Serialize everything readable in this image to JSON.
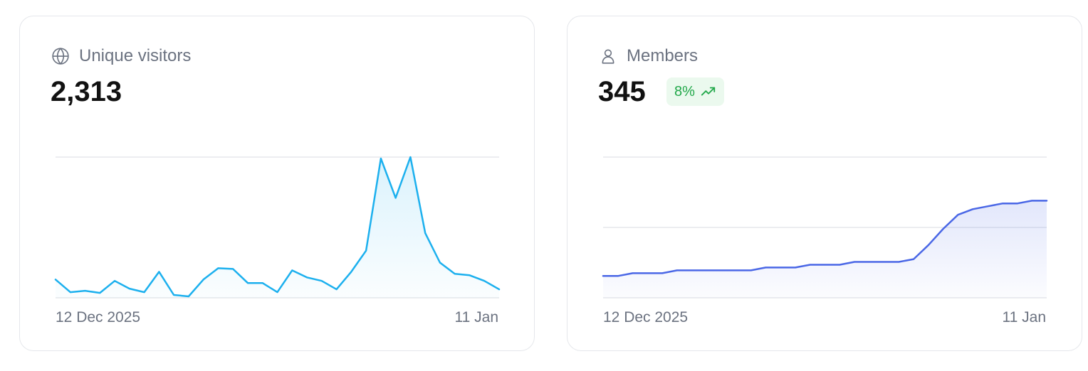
{
  "cards": [
    {
      "label": "Unique visitors",
      "icon": "globe-icon",
      "value": "2,313",
      "x_start": "12 Dec 2025",
      "x_end": "11 Jan",
      "color": "#1cb0ee"
    },
    {
      "label": "Members",
      "icon": "user-icon",
      "value": "345",
      "badge": "8%",
      "badge_icon": "trending-up-icon",
      "x_start": "12 Dec 2025",
      "x_end": "11 Jan",
      "color": "#4a67e6"
    }
  ],
  "chart_data": [
    {
      "type": "area",
      "series": [
        {
          "values": [
            26,
            8,
            10,
            7,
            24,
            13,
            8,
            37,
            4,
            2,
            26,
            42,
            41,
            21,
            21,
            8,
            39,
            29,
            24,
            12,
            37,
            67,
            198,
            142,
            200,
            92,
            50,
            34,
            32,
            24,
            12
          ]
        }
      ],
      "x_start": "12 Dec 2025",
      "x_end": "11 Jan",
      "ylim": [
        0,
        200
      ],
      "grid": true
    },
    {
      "type": "area",
      "series": [
        {
          "values": [
            31,
            31,
            35,
            35,
            35,
            39,
            39,
            39,
            39,
            39,
            39,
            43,
            43,
            43,
            47,
            47,
            47,
            51,
            51,
            51,
            51,
            55,
            75,
            98,
            118,
            126,
            130,
            134,
            134,
            138,
            138
          ]
        }
      ],
      "x_start": "12 Dec 2025",
      "x_end": "11 Jan",
      "ylim": [
        0,
        200
      ],
      "grid": true
    }
  ]
}
